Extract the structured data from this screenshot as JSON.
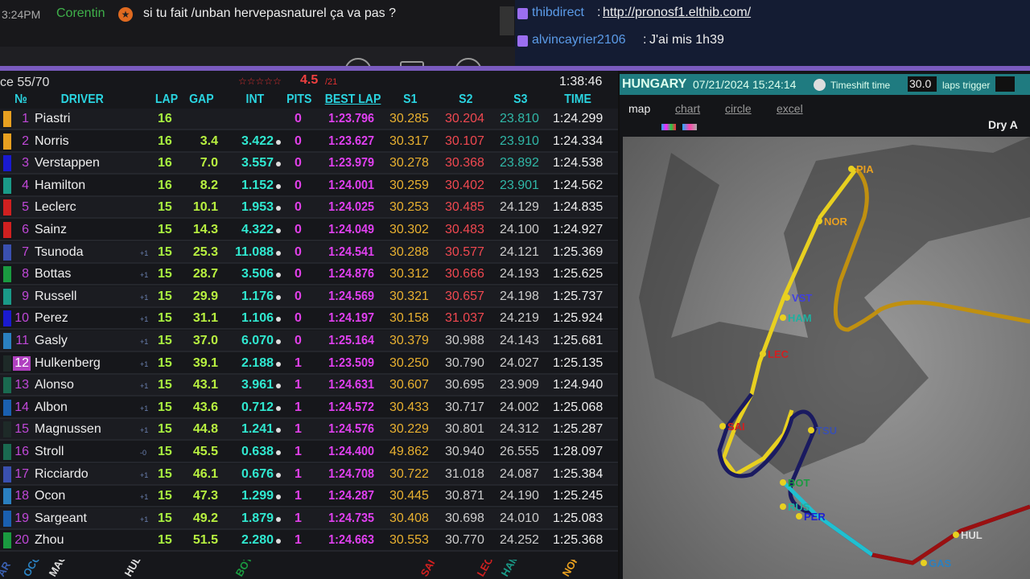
{
  "chat_left": {
    "time": "3:24PM",
    "user": "Corentin",
    "message": "si tu fait /unban hervepasnaturel ça va pas ?"
  },
  "chat_right": {
    "messages": [
      {
        "user": "thibdirect",
        "text": "http://pronosf1.elthib.com/"
      },
      {
        "user": "alvincayrier2106",
        "text": "J'ai mis 1h39"
      }
    ]
  },
  "table": {
    "race": "ce  55/70",
    "stars": "☆☆☆☆☆",
    "rating": "4.5",
    "rating_of": "/21",
    "clock": "1:38:46",
    "columns": [
      "№",
      "DRIVER",
      "LAP",
      "GAP",
      "INT",
      "PITS",
      "BEST LAP",
      "S1",
      "S2",
      "S3",
      "TIME"
    ],
    "rows": [
      {
        "pos": "1",
        "driver": "Piastri",
        "color": "#e8a020",
        "plus": "",
        "lap": "16",
        "gap": "",
        "int": "",
        "pits": "0",
        "best": "1:23.796",
        "s1": "30.285",
        "s2": "30.204",
        "s3": "23.810",
        "time": "1:24.299"
      },
      {
        "pos": "2",
        "driver": "Norris",
        "color": "#e8a020",
        "plus": "",
        "lap": "16",
        "gap": "3.4",
        "int": "3.422",
        "pits": "0",
        "best": "1:23.627",
        "s1": "30.317",
        "s2": "30.107",
        "s3": "23.910",
        "time": "1:24.334"
      },
      {
        "pos": "3",
        "driver": "Verstappen",
        "color": "#1a1ad0",
        "plus": "",
        "lap": "16",
        "gap": "7.0",
        "int": "3.557",
        "pits": "0",
        "best": "1:23.979",
        "s1": "30.278",
        "s2": "30.368",
        "s3": "23.892",
        "time": "1:24.538"
      },
      {
        "pos": "4",
        "driver": "Hamilton",
        "color": "#1a9a88",
        "plus": "",
        "lap": "16",
        "gap": "8.2",
        "int": "1.152",
        "pits": "0",
        "best": "1:24.001",
        "s1": "30.259",
        "s2": "30.402",
        "s3": "23.901",
        "time": "1:24.562"
      },
      {
        "pos": "5",
        "driver": "Leclerc",
        "color": "#d02020",
        "plus": "",
        "lap": "15",
        "gap": "10.1",
        "int": "1.953",
        "pits": "0",
        "best": "1:24.025",
        "s1": "30.253",
        "s2": "30.485",
        "s3": "24.129",
        "time": "1:24.835"
      },
      {
        "pos": "6",
        "driver": "Sainz",
        "color": "#d02020",
        "plus": "",
        "lap": "15",
        "gap": "14.3",
        "int": "4.322",
        "pits": "0",
        "best": "1:24.049",
        "s1": "30.302",
        "s2": "30.483",
        "s3": "24.100",
        "time": "1:24.927"
      },
      {
        "pos": "7",
        "driver": "Tsunoda",
        "color": "#3a50b0",
        "plus": "+1",
        "lap": "15",
        "gap": "25.3",
        "int": "11.088",
        "pits": "0",
        "best": "1:24.541",
        "s1": "30.288",
        "s2": "30.577",
        "s3": "24.121",
        "time": "1:25.369"
      },
      {
        "pos": "8",
        "driver": "Bottas",
        "color": "#1a9a40",
        "plus": "+1",
        "lap": "15",
        "gap": "28.7",
        "int": "3.506",
        "pits": "0",
        "best": "1:24.876",
        "s1": "30.312",
        "s2": "30.666",
        "s3": "24.193",
        "time": "1:25.625"
      },
      {
        "pos": "9",
        "driver": "Russell",
        "color": "#1a9a88",
        "plus": "+1",
        "lap": "15",
        "gap": "29.9",
        "int": "1.176",
        "pits": "0",
        "best": "1:24.569",
        "s1": "30.321",
        "s2": "30.657",
        "s3": "24.198",
        "time": "1:25.737"
      },
      {
        "pos": "10",
        "driver": "Perez",
        "color": "#1a1ad0",
        "plus": "+1",
        "lap": "15",
        "gap": "31.1",
        "int": "1.106",
        "pits": "0",
        "best": "1:24.197",
        "s1": "30.158",
        "s2": "31.037",
        "s3": "24.219",
        "time": "1:25.924"
      },
      {
        "pos": "11",
        "driver": "Gasly",
        "color": "#2a80c0",
        "plus": "+1",
        "lap": "15",
        "gap": "37.0",
        "int": "6.070",
        "pits": "0",
        "best": "1:25.164",
        "s1": "30.379",
        "s2": "30.988",
        "s3": "24.143",
        "time": "1:25.681"
      },
      {
        "pos": "12",
        "driver": "Hulkenberg",
        "color": "#1e2a28",
        "plus": "+1",
        "lap": "15",
        "gap": "39.1",
        "int": "2.188",
        "pits": "1",
        "best": "1:23.509",
        "s1": "30.250",
        "s2": "30.790",
        "s3": "24.027",
        "time": "1:25.135"
      },
      {
        "pos": "13",
        "driver": "Alonso",
        "color": "#1a6a50",
        "plus": "+1",
        "lap": "15",
        "gap": "43.1",
        "int": "3.961",
        "pits": "1",
        "best": "1:24.631",
        "s1": "30.607",
        "s2": "30.695",
        "s3": "23.909",
        "time": "1:24.940"
      },
      {
        "pos": "14",
        "driver": "Albon",
        "color": "#1a60b0",
        "plus": "+1",
        "lap": "15",
        "gap": "43.6",
        "int": "0.712",
        "pits": "1",
        "best": "1:24.572",
        "s1": "30.433",
        "s2": "30.717",
        "s3": "24.002",
        "time": "1:25.068"
      },
      {
        "pos": "15",
        "driver": "Magnussen",
        "color": "#1e2a28",
        "plus": "+1",
        "lap": "15",
        "gap": "44.8",
        "int": "1.241",
        "pits": "1",
        "best": "1:24.576",
        "s1": "30.229",
        "s2": "30.801",
        "s3": "24.312",
        "time": "1:25.287"
      },
      {
        "pos": "16",
        "driver": "Stroll",
        "color": "#1a6a50",
        "plus": "-0",
        "lap": "15",
        "gap": "45.5",
        "int": "0.638",
        "pits": "1",
        "best": "1:24.400",
        "s1": "49.862",
        "s2": "30.940",
        "s3": "26.555",
        "time": "1:28.097"
      },
      {
        "pos": "17",
        "driver": "Ricciardo",
        "color": "#3a50b0",
        "plus": "+1",
        "lap": "15",
        "gap": "46.1",
        "int": "0.676",
        "pits": "1",
        "best": "1:24.708",
        "s1": "30.722",
        "s2": "31.018",
        "s3": "24.087",
        "time": "1:25.384"
      },
      {
        "pos": "18",
        "driver": "Ocon",
        "color": "#2a80c0",
        "plus": "+1",
        "lap": "15",
        "gap": "47.3",
        "int": "1.299",
        "pits": "1",
        "best": "1:24.287",
        "s1": "30.445",
        "s2": "30.871",
        "s3": "24.190",
        "time": "1:25.245"
      },
      {
        "pos": "19",
        "driver": "Sargeant",
        "color": "#1a60b0",
        "plus": "+1",
        "lap": "15",
        "gap": "49.2",
        "int": "1.879",
        "pits": "1",
        "best": "1:24.735",
        "s1": "30.408",
        "s2": "30.698",
        "s3": "24.010",
        "time": "1:25.083"
      },
      {
        "pos": "20",
        "driver": "Zhou",
        "color": "#1a9a40",
        "plus": "",
        "lap": "15",
        "gap": "51.5",
        "int": "2.280",
        "pits": "1",
        "best": "1:24.663",
        "s1": "30.553",
        "s2": "30.770",
        "s3": "24.252",
        "time": "1:25.368"
      }
    ]
  },
  "right": {
    "country": "HUNGARY",
    "datetime": "07/21/2024 15:24:14",
    "timeshift_label": "Timeshift time",
    "timeshift_value": "30.0",
    "laps_trigger_label": "laps trigger",
    "laps_trigger_value": "",
    "tabs": [
      "map",
      "chart",
      "circle",
      "excel"
    ],
    "weather": "Dry A",
    "map_labels": [
      "PIA",
      "NOR",
      "VST",
      "HAM",
      "LEC",
      "SAI",
      "TSU",
      "BOT",
      "RUS",
      "PER",
      "HUL",
      "GAS"
    ]
  }
}
